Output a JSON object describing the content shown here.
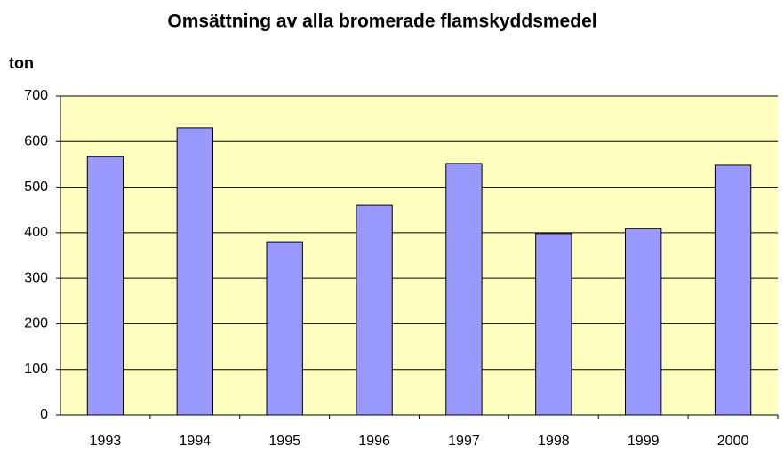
{
  "chart_data": {
    "type": "bar",
    "title": "Omsättning av alla bromerade flamskyddsmedel",
    "y_label": "ton",
    "categories": [
      "1993",
      "1994",
      "1995",
      "1996",
      "1997",
      "1998",
      "1999",
      "2000"
    ],
    "values": [
      567,
      630,
      380,
      460,
      552,
      398,
      409,
      548
    ],
    "color": "#9999ff",
    "plot_background": "#ffffc0",
    "ylim": [
      0,
      700
    ],
    "yticks": [
      0,
      100,
      200,
      300,
      400,
      500,
      600,
      700
    ],
    "grid": true
  }
}
